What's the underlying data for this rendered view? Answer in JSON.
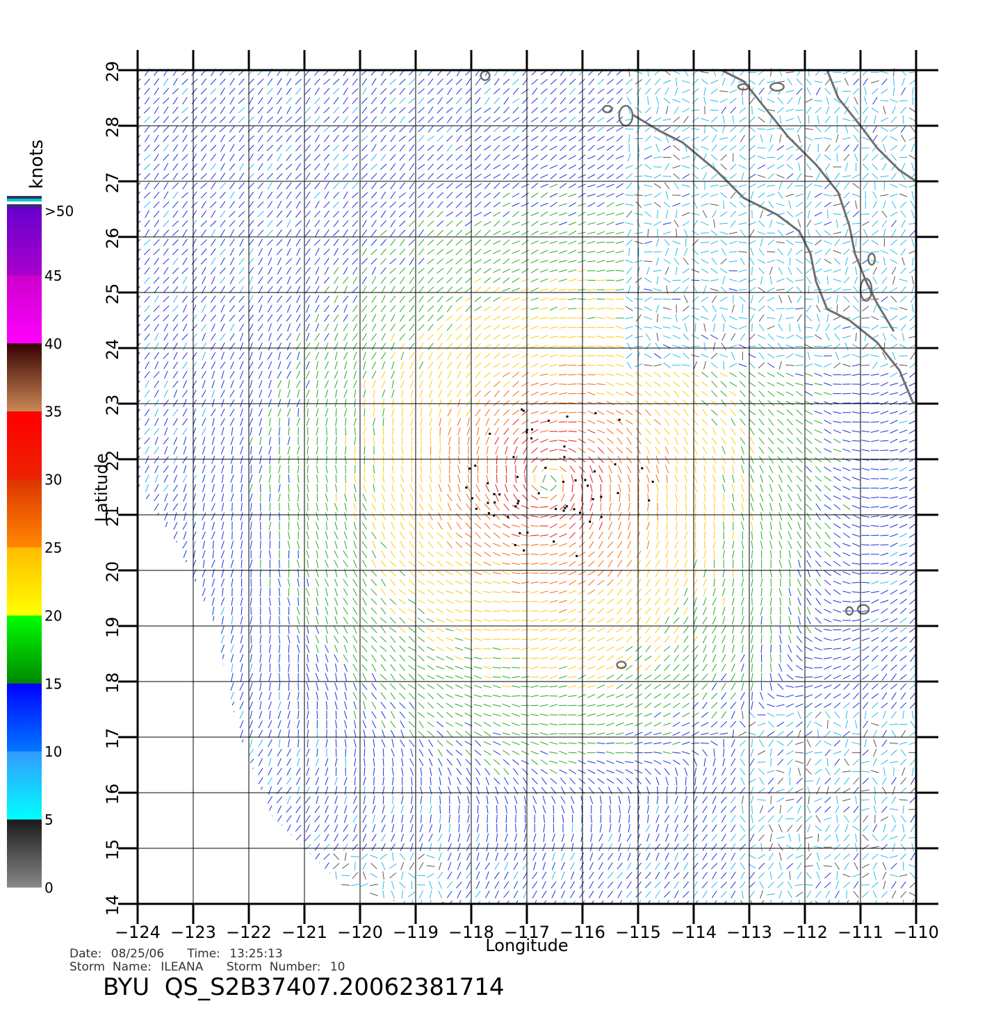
{
  "legend": {
    "unit_label": "knots",
    "top_label": ">50",
    "bands": [
      {
        "from": 0,
        "to": 5,
        "label": "0",
        "colors": [
          "#888888",
          "#1a1a1a"
        ]
      },
      {
        "from": 5,
        "to": 10,
        "label": "5",
        "colors": [
          "#00ffff",
          "#3399ff"
        ]
      },
      {
        "from": 10,
        "to": 15,
        "label": "10",
        "colors": [
          "#0077ff",
          "#0000ff"
        ]
      },
      {
        "from": 15,
        "to": 20,
        "label": "15",
        "colors": [
          "#008800",
          "#00ff00"
        ]
      },
      {
        "from": 20,
        "to": 25,
        "label": "20",
        "colors": [
          "#ffff00",
          "#ffbb00"
        ]
      },
      {
        "from": 25,
        "to": 30,
        "label": "25",
        "colors": [
          "#ff8800",
          "#dd3300"
        ]
      },
      {
        "from": 30,
        "to": 35,
        "label": "30",
        "colors": [
          "#ee2200",
          "#ff0000"
        ]
      },
      {
        "from": 35,
        "to": 40,
        "label": "35",
        "colors": [
          "#cc8855",
          "#330000"
        ]
      },
      {
        "from": 40,
        "to": 45,
        "label": "40",
        "colors": [
          "#ff00ff",
          "#cc00cc"
        ]
      },
      {
        "from": 45,
        "to": 50,
        "label": "45",
        "colors": [
          "#aa00cc",
          "#6600cc"
        ]
      }
    ],
    "top_stripes": [
      "#333366",
      "#00cccc",
      "#ffffff",
      "#333366"
    ]
  },
  "map": {
    "lon_range": [
      -124,
      -110
    ],
    "lat_range": [
      14,
      29
    ],
    "lon_ticks": [
      -124,
      -123,
      -122,
      -121,
      -120,
      -119,
      -118,
      -117,
      -116,
      -115,
      -114,
      -113,
      -112,
      -111,
      -110
    ],
    "lon_tick_labels": [
      "−124",
      "−123",
      "−122",
      "−121",
      "−120",
      "−119",
      "−118",
      "−117",
      "−116",
      "−115",
      "−114",
      "−113",
      "−112",
      "−111",
      "−110"
    ],
    "lat_ticks": [
      14,
      15,
      16,
      17,
      18,
      19,
      20,
      21,
      22,
      23,
      24,
      25,
      26,
      27,
      28,
      29
    ],
    "lat_tick_labels": [
      "14",
      "15",
      "16",
      "17",
      "18",
      "19",
      "20",
      "21",
      "22",
      "23",
      "24",
      "25",
      "26",
      "27",
      "28",
      "29"
    ],
    "xlabel": "Longitude",
    "ylabel": "Latitude",
    "grid": true,
    "storm_center": {
      "lon": -116.6,
      "lat": 21.6
    },
    "coastline_color": "#6e6e6e",
    "mainland_coast": [
      [
        -115.1,
        28.2
      ],
      [
        -114.6,
        27.9
      ],
      [
        -114.2,
        27.7
      ],
      [
        -113.6,
        27.2
      ],
      [
        -113.1,
        26.7
      ],
      [
        -112.5,
        26.4
      ],
      [
        -112.1,
        26.1
      ],
      [
        -111.9,
        25.7
      ],
      [
        -111.8,
        25.2
      ],
      [
        -111.6,
        24.7
      ],
      [
        -111.2,
        24.5
      ],
      [
        -110.7,
        24.1
      ],
      [
        -110.3,
        23.6
      ],
      [
        -110.05,
        23.0
      ]
    ],
    "gulf_west_coast": [
      [
        -113.5,
        29.0
      ],
      [
        -113.1,
        28.8
      ],
      [
        -112.7,
        28.3
      ],
      [
        -112.3,
        27.8
      ],
      [
        -111.8,
        27.3
      ],
      [
        -111.4,
        26.8
      ],
      [
        -111.2,
        26.2
      ],
      [
        -111.1,
        25.7
      ],
      [
        -110.9,
        25.2
      ],
      [
        -110.7,
        24.8
      ],
      [
        -110.4,
        24.3
      ]
    ],
    "gulf_east_coast": [
      [
        -111.6,
        29.0
      ],
      [
        -111.4,
        28.5
      ],
      [
        -111.0,
        28.0
      ],
      [
        -110.7,
        27.6
      ],
      [
        -110.3,
        27.2
      ],
      [
        -110.0,
        27.0
      ]
    ],
    "islands": [
      {
        "lon": -115.22,
        "lat": 28.18,
        "rx": 0.12,
        "ry": 0.18
      },
      {
        "lon": -115.55,
        "lat": 28.3,
        "rx": 0.08,
        "ry": 0.06
      },
      {
        "lon": -117.75,
        "lat": 28.9,
        "rx": 0.08,
        "ry": 0.08
      },
      {
        "lon": -112.5,
        "lat": 28.7,
        "rx": 0.12,
        "ry": 0.07
      },
      {
        "lon": -113.1,
        "lat": 28.7,
        "rx": 0.1,
        "ry": 0.05
      },
      {
        "lon": -115.3,
        "lat": 18.3,
        "rx": 0.08,
        "ry": 0.06
      },
      {
        "lon": -110.95,
        "lat": 19.3,
        "rx": 0.1,
        "ry": 0.08
      },
      {
        "lon": -111.2,
        "lat": 19.27,
        "rx": 0.06,
        "ry": 0.07
      },
      {
        "lon": -110.9,
        "lat": 25.05,
        "rx": 0.1,
        "ry": 0.2
      },
      {
        "lon": -110.8,
        "lat": 25.6,
        "rx": 0.06,
        "ry": 0.1
      }
    ]
  },
  "footer": {
    "date_label": "Date:",
    "date_value": "08/25/06",
    "time_label": "Time:",
    "time_value": "13:25:13",
    "storm_name_label": "Storm  Name:",
    "storm_name_value": "ILEANA",
    "storm_number_label": "Storm  Number:",
    "storm_number_value": "10",
    "product_id": "BYU  QS_S2B37407.20062381714"
  }
}
